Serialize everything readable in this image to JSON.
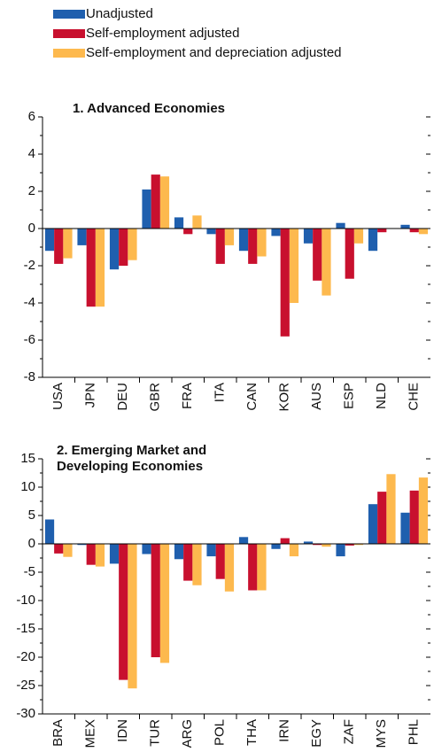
{
  "chart_data": [
    {
      "type": "bar",
      "title": "1. Advanced Economies",
      "categories": [
        "USA",
        "JPN",
        "DEU",
        "GBR",
        "FRA",
        "ITA",
        "CAN",
        "KOR",
        "AUS",
        "ESP",
        "NLD",
        "CHE"
      ],
      "series": [
        {
          "name": "Unadjusted",
          "color": "#1f5fae",
          "values": [
            -1.2,
            -0.9,
            -2.2,
            2.1,
            0.6,
            -0.3,
            -1.2,
            -0.4,
            -0.8,
            0.3,
            -1.2,
            0.2
          ]
        },
        {
          "name": "Self-employment adjusted",
          "color": "#c8102e",
          "values": [
            -1.9,
            -4.2,
            -2.0,
            2.9,
            -0.3,
            -1.9,
            -1.9,
            -5.8,
            -2.8,
            -2.7,
            -0.2,
            -0.2
          ]
        },
        {
          "name": "Self-employment and depreciation adjusted",
          "color": "#fdb94e",
          "values": [
            -1.6,
            -4.2,
            -1.7,
            2.8,
            0.7,
            -0.9,
            -1.5,
            -4.0,
            -3.6,
            -0.8,
            0,
            -0.3
          ]
        }
      ],
      "ylim": [
        -8,
        6
      ],
      "yticks": [
        -8,
        -6,
        -4,
        -2,
        0,
        2,
        4,
        6
      ]
    },
    {
      "type": "bar",
      "title": "2. Emerging Market and Developing Economies",
      "categories": [
        "BRA",
        "MEX",
        "IDN",
        "TUR",
        "ARG",
        "POL",
        "THA",
        "IRN",
        "EGY",
        "ZAF",
        "MYS",
        "PHL"
      ],
      "series": [
        {
          "name": "Unadjusted",
          "color": "#1f5fae",
          "values": [
            4.3,
            -0.2,
            -3.5,
            -1.8,
            -2.7,
            -2.2,
            1.2,
            -0.9,
            0.4,
            -2.2,
            7.0,
            5.5
          ]
        },
        {
          "name": "Self-employment adjusted",
          "color": "#c8102e",
          "values": [
            -1.7,
            -3.7,
            -24,
            -20,
            -6.5,
            -6.2,
            -8.2,
            1.0,
            -0.2,
            -0.3,
            9.2,
            9.4
          ]
        },
        {
          "name": "Self-employment and depreciation adjusted",
          "color": "#fdb94e",
          "values": [
            -2.3,
            -4.0,
            -25.5,
            -21,
            -7.3,
            -8.4,
            -8.2,
            -2.2,
            -0.5,
            -0.2,
            12.3,
            11.7
          ]
        }
      ],
      "ylim": [
        -30,
        15
      ],
      "yticks": [
        -30,
        -25,
        -20,
        -15,
        -10,
        -5,
        0,
        5,
        10,
        15
      ]
    }
  ]
}
